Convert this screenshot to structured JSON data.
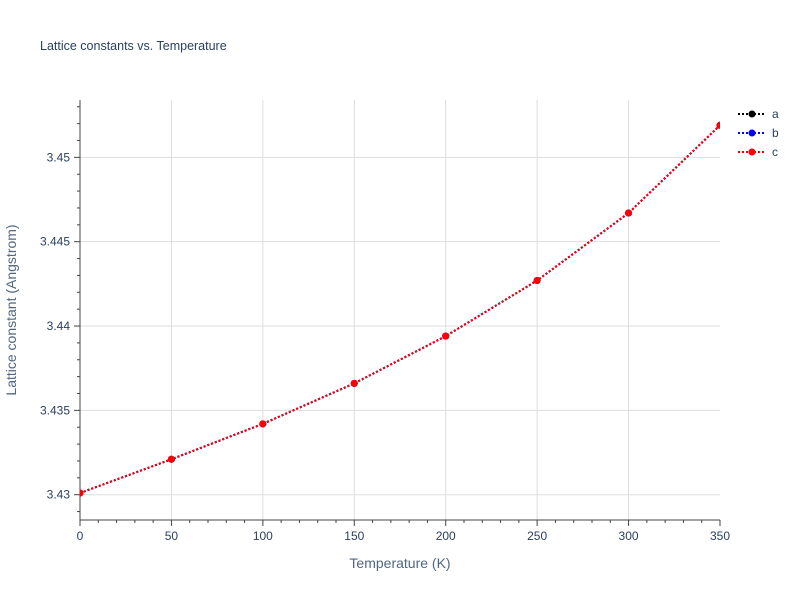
{
  "chart_data": {
    "type": "line",
    "title": "Lattice constants vs. Temperature",
    "xlabel": "Temperature (K)",
    "ylabel": "Lattice constant (Angstrom)",
    "x": [
      0,
      50,
      100,
      150,
      200,
      250,
      300,
      350
    ],
    "xlim": [
      0,
      350
    ],
    "ylim": [
      3.4285,
      3.4534
    ],
    "x_ticks": [
      0,
      50,
      100,
      150,
      200,
      250,
      300,
      350
    ],
    "x_tick_labels": [
      "0",
      "50",
      "100",
      "150",
      "200",
      "250",
      "300",
      "350"
    ],
    "y_ticks": [
      3.43,
      3.435,
      3.44,
      3.445,
      3.45
    ],
    "y_tick_labels": [
      "3.43",
      "3.435",
      "3.44",
      "3.445",
      "3.45"
    ],
    "grid": true,
    "legend_position": "top-right",
    "series": [
      {
        "name": "a",
        "color": "#000000",
        "line_style": "dotted",
        "marker": "circle",
        "values": [
          3.4301,
          3.4321,
          3.4342,
          3.4366,
          3.4394,
          3.4427,
          3.4467,
          3.4519
        ]
      },
      {
        "name": "b",
        "color": "#0000ff",
        "line_style": "dotted",
        "marker": "circle",
        "values": [
          3.4301,
          3.4321,
          3.4342,
          3.4366,
          3.4394,
          3.4427,
          3.4467,
          3.4519
        ]
      },
      {
        "name": "c",
        "color": "#ff0000",
        "line_style": "dotted",
        "marker": "circle",
        "values": [
          3.4301,
          3.4321,
          3.4342,
          3.4366,
          3.4394,
          3.4427,
          3.4467,
          3.4519
        ]
      }
    ]
  }
}
